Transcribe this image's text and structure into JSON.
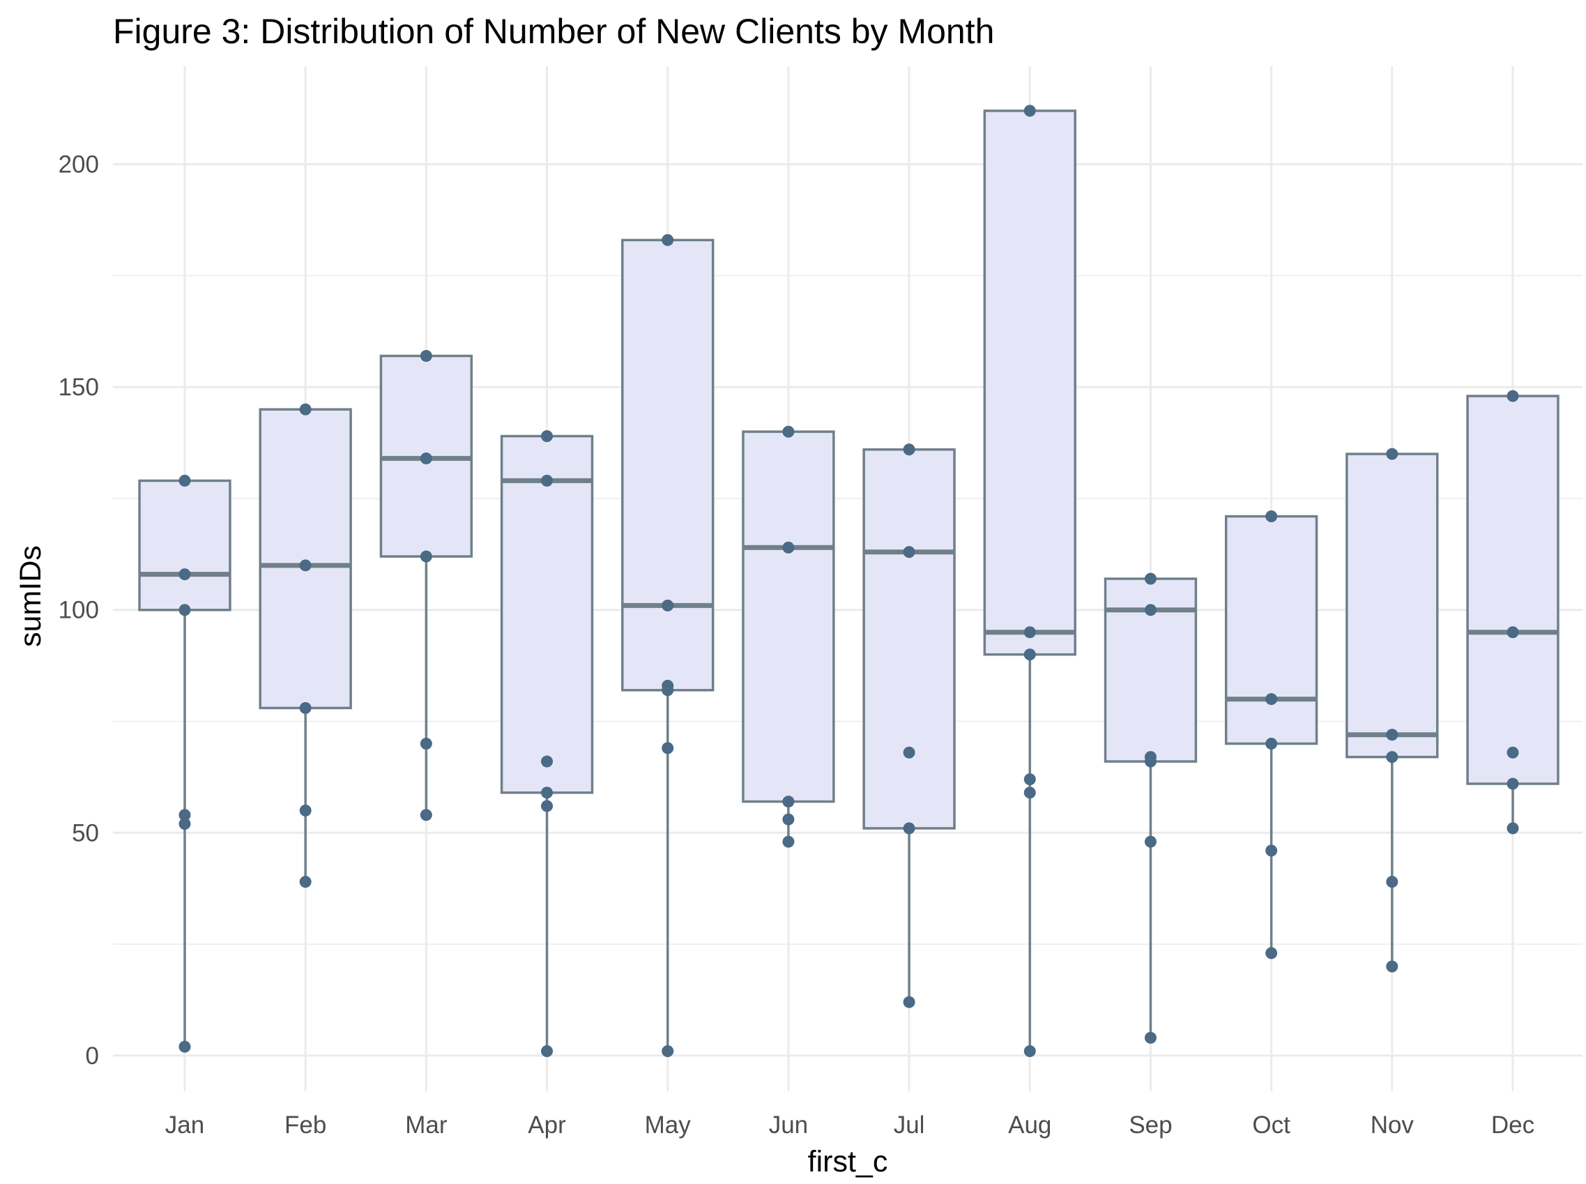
{
  "chart_data": {
    "type": "boxplot",
    "title": "Figure 3: Distribution of Number of New Clients by Month",
    "xlabel": "first_c",
    "ylabel": "sumIDs",
    "categories": [
      "Jan",
      "Feb",
      "Mar",
      "Apr",
      "May",
      "Jun",
      "Jul",
      "Aug",
      "Sep",
      "Oct",
      "Nov",
      "Dec"
    ],
    "y_ticks": [
      0,
      50,
      100,
      150,
      200
    ],
    "ylim": [
      -8,
      222
    ],
    "grid": true,
    "boxes": [
      {
        "category": "Jan",
        "lower": 2,
        "q1": 100,
        "median": 108,
        "q3": 129,
        "upper": 129
      },
      {
        "category": "Feb",
        "lower": 39,
        "q1": 78,
        "median": 110,
        "q3": 145,
        "upper": 145
      },
      {
        "category": "Mar",
        "lower": 54,
        "q1": 112,
        "median": 134,
        "q3": 157,
        "upper": 157
      },
      {
        "category": "Apr",
        "lower": 1,
        "q1": 59,
        "median": 129,
        "q3": 139,
        "upper": 139
      },
      {
        "category": "May",
        "lower": 1,
        "q1": 82,
        "median": 101,
        "q3": 183,
        "upper": 183
      },
      {
        "category": "Jun",
        "lower": 48,
        "q1": 57,
        "median": 114,
        "q3": 140,
        "upper": 140
      },
      {
        "category": "Jul",
        "lower": 12,
        "q1": 51,
        "median": 113,
        "q3": 136,
        "upper": 136
      },
      {
        "category": "Aug",
        "lower": 1,
        "q1": 90,
        "median": 95,
        "q3": 212,
        "upper": 212
      },
      {
        "category": "Sep",
        "lower": 4,
        "q1": 66,
        "median": 100,
        "q3": 107,
        "upper": 107
      },
      {
        "category": "Oct",
        "lower": 23,
        "q1": 70,
        "median": 80,
        "q3": 121,
        "upper": 121
      },
      {
        "category": "Nov",
        "lower": 20,
        "q1": 67,
        "median": 72,
        "q3": 135,
        "upper": 135
      },
      {
        "category": "Dec",
        "lower": 51,
        "q1": 61,
        "median": 95,
        "q3": 148,
        "upper": 148
      }
    ],
    "points": [
      {
        "category": "Jan",
        "values": [
          129,
          108,
          100,
          54,
          52,
          2
        ]
      },
      {
        "category": "Feb",
        "values": [
          145,
          110,
          78,
          55,
          39
        ]
      },
      {
        "category": "Mar",
        "values": [
          157,
          134,
          112,
          70,
          54
        ]
      },
      {
        "category": "Apr",
        "values": [
          139,
          129,
          66,
          59,
          56,
          1
        ]
      },
      {
        "category": "May",
        "values": [
          183,
          101,
          83,
          82,
          69,
          1
        ]
      },
      {
        "category": "Jun",
        "values": [
          140,
          114,
          57,
          53,
          48
        ]
      },
      {
        "category": "Jul",
        "values": [
          136,
          113,
          68,
          51,
          12
        ]
      },
      {
        "category": "Aug",
        "values": [
          212,
          95,
          90,
          62,
          59,
          1
        ]
      },
      {
        "category": "Sep",
        "values": [
          107,
          100,
          67,
          66,
          48,
          4
        ]
      },
      {
        "category": "Oct",
        "values": [
          121,
          80,
          70,
          46,
          23
        ]
      },
      {
        "category": "Nov",
        "values": [
          135,
          72,
          67,
          39,
          20
        ]
      },
      {
        "category": "Dec",
        "values": [
          148,
          95,
          68,
          61,
          51
        ]
      }
    ],
    "colors": {
      "box_fill": "#e4e6f8",
      "box_stroke": "#6f8089",
      "median": "#6f8089",
      "point": "#4a6a85",
      "grid": "#ebebeb",
      "tick_label": "#4d4d4d",
      "axis_title": "#000000",
      "title": "#000000"
    }
  }
}
